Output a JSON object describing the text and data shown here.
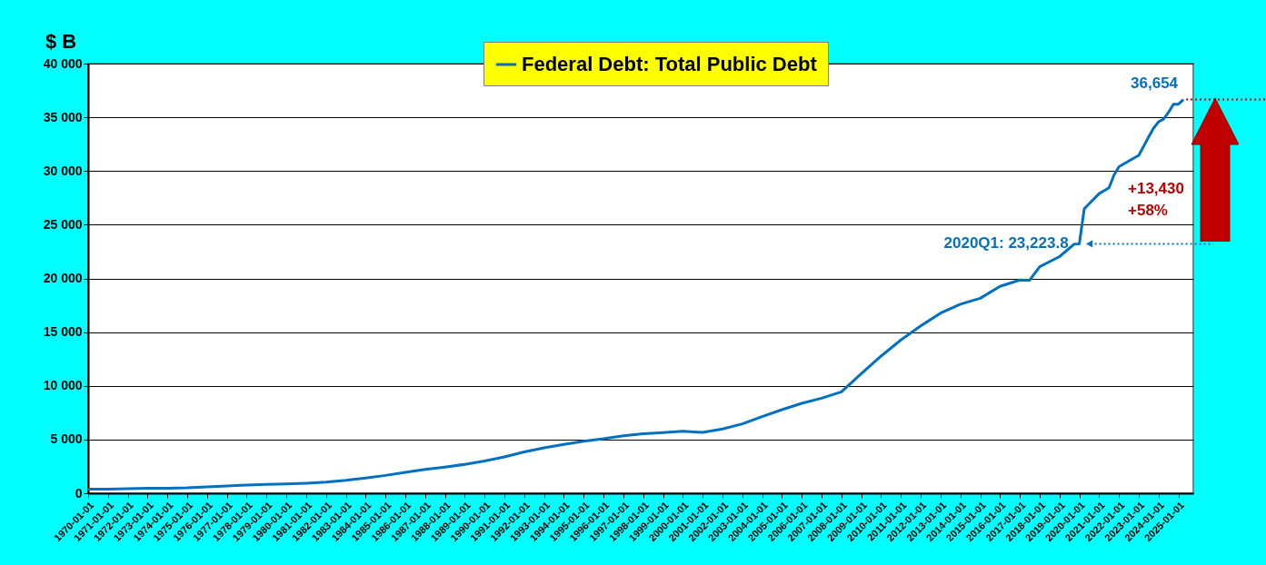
{
  "chart_data": {
    "type": "line",
    "ylabel": "$ B",
    "legend": "top",
    "grid": "y",
    "marker": "none",
    "line_style": "solid",
    "x": [
      "1970-01-01",
      "1971-01-01",
      "1972-01-01",
      "1973-01-01",
      "1974-01-01",
      "1975-01-01",
      "1976-01-01",
      "1977-01-01",
      "1978-01-01",
      "1979-01-01",
      "1980-01-01",
      "1981-01-01",
      "1982-01-01",
      "1983-01-01",
      "1984-01-01",
      "1985-01-01",
      "1986-01-01",
      "1987-01-01",
      "1988-01-01",
      "1989-01-01",
      "1990-01-01",
      "1991-01-01",
      "1992-01-01",
      "1993-01-01",
      "1994-01-01",
      "1995-01-01",
      "1996-01-01",
      "1997-01-01",
      "1998-01-01",
      "1999-01-01",
      "2000-01-01",
      "2001-01-01",
      "2002-01-01",
      "2003-01-01",
      "2004-01-01",
      "2005-01-01",
      "2006-01-01",
      "2007-01-01",
      "2008-01-01",
      "2008-10-01",
      "2009-01-01",
      "2010-01-01",
      "2011-01-01",
      "2012-01-01",
      "2013-01-01",
      "2014-01-01",
      "2015-01-01",
      "2016-01-01",
      "2017-01-01",
      "2017-07-01",
      "2018-01-01",
      "2019-01-01",
      "2019-10-01",
      "2020-01-01",
      "2020-04-01",
      "2020-07-01",
      "2021-01-01",
      "2021-07-01",
      "2021-10-01",
      "2022-01-01",
      "2022-07-01",
      "2023-01-01",
      "2023-07-01",
      "2023-10-01",
      "2024-01-01",
      "2024-04-01",
      "2024-07-01",
      "2024-10-01",
      "2025-01-01",
      "2025-04-01"
    ],
    "series": [
      {
        "name": "Federal Debt: Total Public Debt",
        "color": "#0070c0",
        "values": [
          371,
          390,
          425,
          456,
          474,
          509,
          590,
          680,
          760,
          820,
          860,
          940,
          1030,
          1200,
          1420,
          1660,
          1950,
          2220,
          2440,
          2690,
          3010,
          3380,
          3850,
          4230,
          4540,
          4850,
          5080,
          5350,
          5540,
          5650,
          5770,
          5660,
          5980,
          6460,
          7130,
          7780,
          8370,
          8850,
          9440,
          10700,
          11130,
          12770,
          14270,
          15580,
          16770,
          17600,
          18150,
          19260,
          19850,
          19840,
          21090,
          22030,
          23200,
          23223.8,
          26480,
          26950,
          27900,
          28430,
          29620,
          30400,
          30930,
          31460,
          33170,
          34000,
          34590,
          34830,
          35460,
          36220,
          36220,
          36654
        ]
      }
    ],
    "xlim": [
      "1970-01-01",
      "2025-10-01"
    ],
    "xticks": [
      "1970-01-01",
      "1971-01-01",
      "1972-01-01",
      "1973-01-01",
      "1974-01-01",
      "1975-01-01",
      "1976-01-01",
      "1977-01-01",
      "1978-01-01",
      "1979-01-01",
      "1980-01-01",
      "1981-01-01",
      "1982-01-01",
      "1983-01-01",
      "1984-01-01",
      "1985-01-01",
      "1986-01-01",
      "1987-01-01",
      "1988-01-01",
      "1989-01-01",
      "1990-01-01",
      "1991-01-01",
      "1992-01-01",
      "1993-01-01",
      "1994-01-01",
      "1995-01-01",
      "1996-01-01",
      "1997-01-01",
      "1998-01-01",
      "1999-01-01",
      "2000-01-01",
      "2001-01-01",
      "2002-01-01",
      "2003-01-01",
      "2004-01-01",
      "2005-01-01",
      "2006-01-01",
      "2007-01-01",
      "2008-01-01",
      "2009-01-01",
      "2010-01-01",
      "2011-01-01",
      "2012-01-01",
      "2013-01-01",
      "2014-01-01",
      "2015-01-01",
      "2016-01-01",
      "2017-01-01",
      "2018-01-01",
      "2019-01-01",
      "2020-01-01",
      "2021-01-01",
      "2022-01-01",
      "2023-01-01",
      "2024-01-01",
      "2025-01-01"
    ],
    "ylim": [
      0,
      40000
    ],
    "yticks": [
      0,
      {
        "value": 5000,
        "label": "5 000"
      },
      {
        "value": 10000,
        "label": "10 000"
      },
      {
        "value": 15000,
        "label": "15 000"
      },
      {
        "value": 20000,
        "label": "20 000"
      },
      {
        "value": 25000,
        "label": "25 000"
      },
      {
        "value": 30000,
        "label": "30 000"
      },
      {
        "value": 35000,
        "label": "35 000"
      },
      {
        "value": 40000,
        "label": "40 000"
      }
    ],
    "annotations": [
      {
        "text": "36,654",
        "x": "2025-04-01",
        "y": 36654
      },
      {
        "text": "2020Q1: 23,223.8",
        "x": "2020-01-01",
        "y": 23223.8
      },
      "+13,430",
      "+58%"
    ]
  }
}
